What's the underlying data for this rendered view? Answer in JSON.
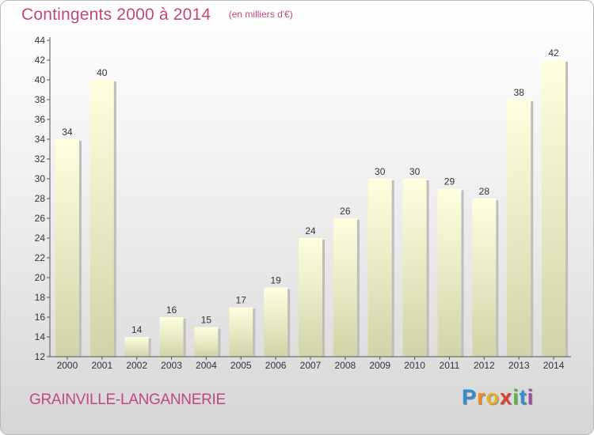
{
  "title": "Contingents 2000 à 2014",
  "subtitle": "(en milliers d'€)",
  "commune": "GRAINVILLE-LANGANNERIE",
  "brand": {
    "letters": [
      "P",
      "r",
      "o",
      "x",
      "i",
      "t",
      "i"
    ],
    "colors": [
      "#2f8fd0",
      "#f28a1c",
      "#e8b21e",
      "#e23f2c",
      "#5bb844",
      "#2f8fd0",
      "#9a4ea0"
    ]
  },
  "colors": {
    "text_accent": "#c0477f",
    "bar_top": "#ffffe0",
    "bar_bottom": "#d3d3a8",
    "axis": "#555555"
  },
  "chart_data": {
    "type": "bar",
    "title": "Contingents 2000 à 2014",
    "subtitle": "(en milliers d'€)",
    "categories": [
      "2000",
      "2001",
      "2002",
      "2003",
      "2004",
      "2005",
      "2006",
      "2007",
      "2008",
      "2009",
      "2010",
      "2011",
      "2012",
      "2013",
      "2014"
    ],
    "values": [
      34,
      40,
      14,
      16,
      15,
      17,
      19,
      24,
      26,
      30,
      30,
      29,
      28,
      38,
      42
    ],
    "ylim": [
      12,
      44
    ],
    "yticks": [
      12,
      14,
      16,
      18,
      20,
      22,
      24,
      26,
      28,
      30,
      32,
      34,
      36,
      38,
      40,
      42,
      44
    ],
    "xlabel": "",
    "ylabel": "",
    "grid": false,
    "data_labels": true
  }
}
